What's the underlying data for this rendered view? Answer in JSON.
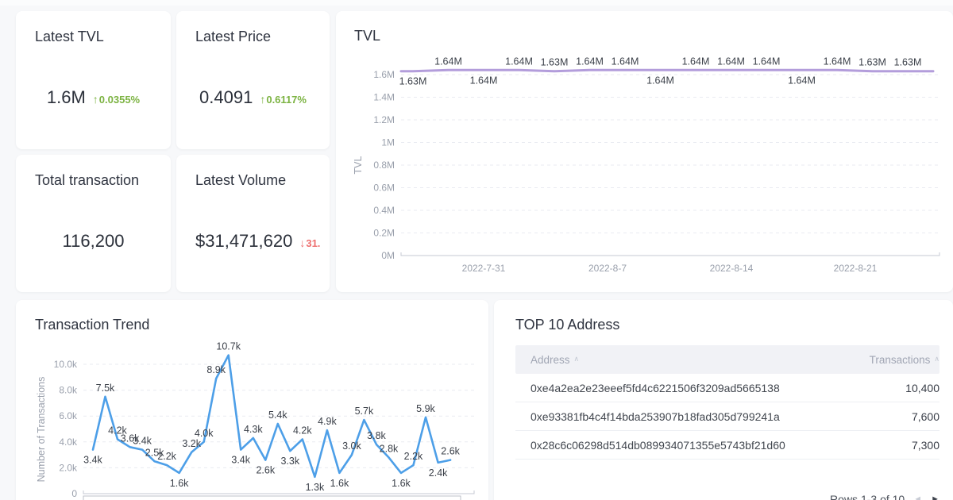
{
  "stats": [
    {
      "title": "Latest TVL",
      "value": "1.6M",
      "change": "0.0355%",
      "direction": "up"
    },
    {
      "title": "Latest Price",
      "value": "0.4091",
      "change": "0.6117%",
      "direction": "up"
    },
    {
      "title": "Total transaction",
      "value": "116,200"
    },
    {
      "title": "Latest Volume",
      "value": "$31,471,620",
      "change": "31.",
      "direction": "down"
    }
  ],
  "colors": {
    "up_green": "#7cb342",
    "down_red": "#ee6f6f",
    "tvl_line": "#b39ddb",
    "trend_line": "#4d9fe8"
  },
  "chart_data": [
    {
      "type": "line",
      "title": "TVL",
      "ylabel": "TVL",
      "unit": "M",
      "ylim": [
        0,
        1600000
      ],
      "grid": "dashed",
      "legend": "none",
      "y_ticks": [
        "0M",
        "0.2M",
        "0.4M",
        "0.6M",
        "0.8M",
        "1M",
        "1.2M",
        "1.4M",
        "1.6M"
      ],
      "x_ticks": [
        "2022-7-31",
        "2022-8-7",
        "2022-8-14",
        "2022-8-21"
      ],
      "series": [
        {
          "name": "TVL",
          "values": [
            1.63,
            1.64,
            1.64,
            1.64,
            1.63,
            1.64,
            1.64,
            1.64,
            1.64,
            1.64,
            1.64,
            1.64,
            1.64,
            1.63,
            1.63
          ],
          "labels": [
            "1.63M",
            "1.64M",
            "1.64M",
            "1.64M",
            "1.63M",
            "1.64M",
            "1.64M",
            "1.64M",
            "1.64M",
            "1.64M",
            "1.64M",
            "1.64M",
            "1.64M",
            "1.63M",
            "1.63M"
          ],
          "label_pos": [
            "below",
            "above",
            "below",
            "above",
            "above",
            "above",
            "above",
            "below",
            "above",
            "above",
            "above",
            "below",
            "above",
            "above",
            "above"
          ]
        }
      ]
    },
    {
      "type": "line",
      "title": "Transaction Trend",
      "ylabel": "Number of Transactions",
      "unit": "k",
      "ylim": [
        0,
        10000
      ],
      "grid": "dashed",
      "legend": "none",
      "y_ticks": [
        "0",
        "2.0k",
        "4.0k",
        "6.0k",
        "8.0k",
        "10.0k"
      ],
      "series": [
        {
          "name": "Transactions",
          "values": [
            3.4,
            7.5,
            4.2,
            3.6,
            3.4,
            2.5,
            2.2,
            1.6,
            3.2,
            4.0,
            8.9,
            10.7,
            3.4,
            4.3,
            2.6,
            5.4,
            3.3,
            4.2,
            1.3,
            4.9,
            1.6,
            3.0,
            5.7,
            3.8,
            2.8,
            1.6,
            2.2,
            5.9,
            2.4,
            2.6
          ],
          "labels": [
            "3.4k",
            "7.5k",
            "4.2k",
            "3.6k",
            "3.4k",
            "2.5k",
            "2.2k",
            "1.6k",
            "3.2k",
            "4.0k",
            "8.9k",
            "10.7k",
            "3.4k",
            "4.3k",
            "2.6k",
            "5.4k",
            "3.3k",
            "4.2k",
            "1.3k",
            "4.9k",
            "1.6k",
            "3.0k",
            "5.7k",
            "3.8k",
            "2.8k",
            "1.6k",
            "2.2k",
            "5.9k",
            "2.4k",
            "2.6k"
          ]
        }
      ]
    }
  ],
  "table": {
    "title": "TOP 10 Address",
    "columns": [
      "Address",
      "Transactions"
    ],
    "rows": [
      {
        "address": "0xe4a2ea2e23eeef5fd4c6221506f3209ad5665138",
        "transactions": "10,400"
      },
      {
        "address": "0xe93381fb4c4f14bda253907b18fad305d799241a",
        "transactions": "7,600"
      },
      {
        "address": "0x28c6c06298d514db089934071355e5743bf21d60",
        "transactions": "7,300"
      }
    ],
    "pagination": "Rows 1-3 of 10"
  }
}
